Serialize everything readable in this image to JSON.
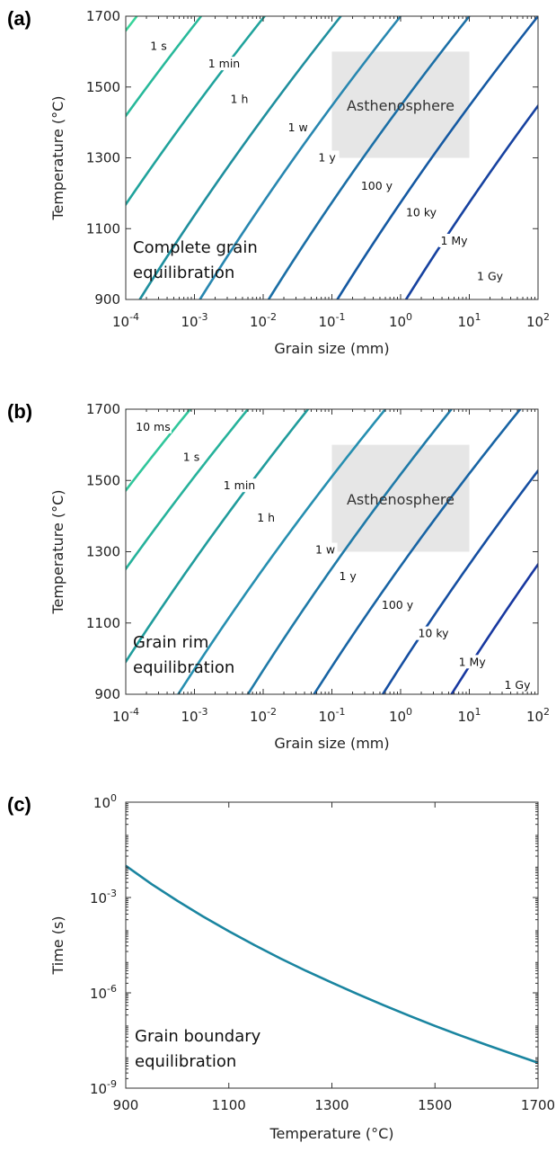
{
  "chart_data": [
    {
      "panel": "(a)",
      "type": "line",
      "xlabel": "Grain size (mm)",
      "ylabel": "Temperature (°C)",
      "xscale": "log",
      "xlim": [
        0.0001,
        100
      ],
      "ylim": [
        900,
        1700
      ],
      "x_ticks": [
        {
          "base": "10",
          "exp": "-4",
          "value": 0.0001
        },
        {
          "base": "10",
          "exp": "-3",
          "value": 0.001
        },
        {
          "base": "10",
          "exp": "-2",
          "value": 0.01
        },
        {
          "base": "10",
          "exp": "-1",
          "value": 0.1
        },
        {
          "base": "10",
          "exp": "0",
          "value": 1
        },
        {
          "base": "10",
          "exp": "1",
          "value": 10
        },
        {
          "base": "10",
          "exp": "2",
          "value": 100
        }
      ],
      "y_ticks": [
        "900",
        "1100",
        "1300",
        "1500",
        "1700"
      ],
      "annotation": [
        "Complete grain",
        "equilibration"
      ],
      "region": {
        "label": "Asthenosphere",
        "x": [
          0.1,
          10
        ],
        "y": [
          1300,
          1600
        ],
        "color": "#e6e6e6"
      },
      "curvature": 0.12,
      "series": [
        {
          "label": "1 s",
          "x_at_1700": 0.000145,
          "x_at_900": 2e-07,
          "color": "#38d49a",
          "label_at": [
            0.0003,
            1610
          ]
        },
        {
          "label": "1 min",
          "x_at_1700": 0.00125,
          "x_at_900": 1.6e-06,
          "color": "#27b99a",
          "label_at": [
            0.0027,
            1560
          ]
        },
        {
          "label": "1 h",
          "x_at_1700": 0.0105,
          "x_at_900": 1.25e-05,
          "color": "#20a39c",
          "label_at": [
            0.0045,
            1460
          ]
        },
        {
          "label": "1 w",
          "x_at_1700": 0.135,
          "x_at_900": 0.00016,
          "color": "#1f8f9e",
          "label_at": [
            0.032,
            1380
          ]
        },
        {
          "label": "1 y",
          "x_at_1700": 1.0,
          "x_at_900": 0.0012,
          "color": "#2887b0",
          "label_at": [
            0.085,
            1295
          ]
        },
        {
          "label": "100 y",
          "x_at_1700": 10,
          "x_at_900": 0.012,
          "color": "#1b6fa6",
          "label_at": [
            0.45,
            1215
          ]
        },
        {
          "label": "10 ky",
          "x_at_1700": 100,
          "x_at_900": 0.12,
          "color": "#1559a2",
          "label_at": [
            2.0,
            1140
          ]
        },
        {
          "label": "1 My",
          "x_at_1700": 1000,
          "x_at_900": 1.2,
          "color": "#1742a0",
          "label_at": [
            6.0,
            1060
          ]
        },
        {
          "label": "1 Gy",
          "x_at_1700": 1000000,
          "x_at_900": 1200,
          "color": "#1a2aa0",
          "label_at": [
            20,
            960
          ]
        }
      ]
    },
    {
      "panel": "(b)",
      "type": "line",
      "xlabel": "Grain size (mm)",
      "ylabel": "Temperature (°C)",
      "xscale": "log",
      "xlim": [
        0.0001,
        100
      ],
      "ylim": [
        900,
        1700
      ],
      "x_ticks": [
        {
          "base": "10",
          "exp": "-4",
          "value": 0.0001
        },
        {
          "base": "10",
          "exp": "-3",
          "value": 0.001
        },
        {
          "base": "10",
          "exp": "-2",
          "value": 0.01
        },
        {
          "base": "10",
          "exp": "-1",
          "value": 0.1
        },
        {
          "base": "10",
          "exp": "0",
          "value": 1
        },
        {
          "base": "10",
          "exp": "1",
          "value": 10
        },
        {
          "base": "10",
          "exp": "2",
          "value": 100
        }
      ],
      "y_ticks": [
        "900",
        "1100",
        "1300",
        "1500",
        "1700"
      ],
      "annotation": [
        "Grain rim",
        "equilibration"
      ],
      "region": {
        "label": "Asthenosphere",
        "x": [
          0.1,
          10
        ],
        "y": [
          1300,
          1600
        ],
        "color": "#e6e6e6"
      },
      "curvature": 0.12,
      "series": [
        {
          "label": "10 ms",
          "x_at_1700": 0.0001,
          "x_at_900": 5.8e-08,
          "color": "#3fdaa0",
          "label_at": [
            0.00025,
            1645
          ]
        },
        {
          "label": "1 s",
          "x_at_1700": 0.00087,
          "x_at_900": 8e-07,
          "color": "#30c69b",
          "label_at": [
            0.0009,
            1560
          ]
        },
        {
          "label": "1 min",
          "x_at_1700": 0.006,
          "x_at_900": 5.8e-06,
          "color": "#26b29b",
          "label_at": [
            0.0045,
            1480
          ]
        },
        {
          "label": "1 h",
          "x_at_1700": 0.045,
          "x_at_900": 5e-05,
          "color": "#209c9c",
          "label_at": [
            0.011,
            1390
          ]
        },
        {
          "label": "1 w",
          "x_at_1700": 0.6,
          "x_at_900": 0.00058,
          "color": "#268fb0",
          "label_at": [
            0.08,
            1300
          ]
        },
        {
          "label": "1 y",
          "x_at_1700": 5.5,
          "x_at_900": 0.006,
          "color": "#1f7aa8",
          "label_at": [
            0.17,
            1225
          ]
        },
        {
          "label": "100 y",
          "x_at_1700": 55,
          "x_at_900": 0.055,
          "color": "#1864a4",
          "label_at": [
            0.9,
            1145
          ]
        },
        {
          "label": "10 ky",
          "x_at_1700": 500,
          "x_at_900": 0.55,
          "color": "#154ea1",
          "label_at": [
            3.0,
            1065
          ]
        },
        {
          "label": "1 My",
          "x_at_1700": 5000,
          "x_at_900": 5.5,
          "color": "#1838a0",
          "label_at": [
            11,
            985
          ]
        },
        {
          "label": "1 Gy",
          "x_at_1700": 5000000,
          "x_at_900": 5500,
          "color": "#1a26a0",
          "label_at": [
            50,
            920
          ]
        }
      ]
    },
    {
      "panel": "(c)",
      "type": "line",
      "xlabel": "Temperature (°C)",
      "ylabel": "Time (s)",
      "yscale": "log",
      "xlim": [
        900,
        1700
      ],
      "ylim": [
        1e-09,
        1
      ],
      "x_ticks": [
        "900",
        "1100",
        "1300",
        "1500",
        "1700"
      ],
      "y_ticks": [
        {
          "base": "10",
          "exp": "0",
          "value": 1
        },
        {
          "base": "10",
          "exp": "-3",
          "value": 0.001
        },
        {
          "base": "10",
          "exp": "-6",
          "value": 1e-06
        },
        {
          "base": "10",
          "exp": "-9",
          "value": 1e-09
        }
      ],
      "annotation": [
        "Grain boundary",
        "equilibration"
      ],
      "series": [
        {
          "color": "#1a85a0",
          "x": [
            900,
            950,
            1000,
            1050,
            1100,
            1150,
            1200,
            1250,
            1300,
            1350,
            1400,
            1450,
            1500,
            1550,
            1600,
            1650,
            1700
          ],
          "y": [
            0.01,
            0.00265,
            0.00079,
            0.000252,
            8.71e-05,
            3.16e-05,
            1.21e-05,
            4.9e-06,
            2.09e-06,
            9.1e-07,
            4.1e-07,
            1.9e-07,
            9.1e-08,
            4.5e-08,
            2.3e-08,
            1.2e-08,
            6.3e-09
          ]
        }
      ]
    }
  ]
}
